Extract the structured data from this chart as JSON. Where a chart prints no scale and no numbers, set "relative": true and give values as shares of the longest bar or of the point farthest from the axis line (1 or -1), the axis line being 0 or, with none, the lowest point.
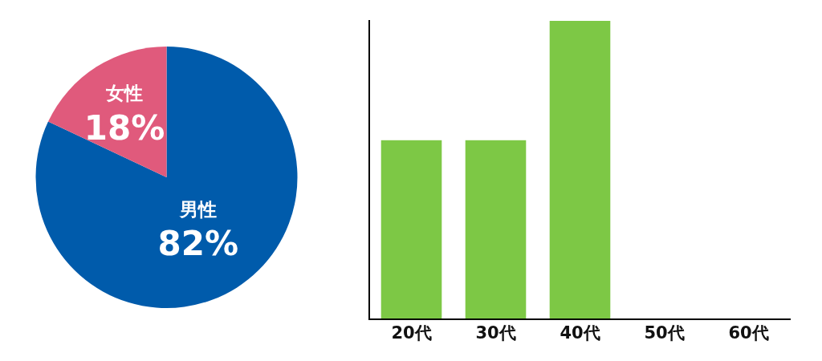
{
  "chart_data": [
    {
      "type": "pie",
      "categories": [
        "男性",
        "女性"
      ],
      "values": [
        82,
        18
      ],
      "colors": [
        "#005bab",
        "#e05a7c"
      ],
      "value_labels": [
        "82%",
        "18%"
      ]
    },
    {
      "type": "bar",
      "categories": [
        "20代",
        "30代",
        "40代",
        "50代",
        "60代"
      ],
      "values": [
        0.6,
        0.6,
        1,
        0,
        0
      ],
      "color": "#7dc845",
      "relative": true
    }
  ]
}
